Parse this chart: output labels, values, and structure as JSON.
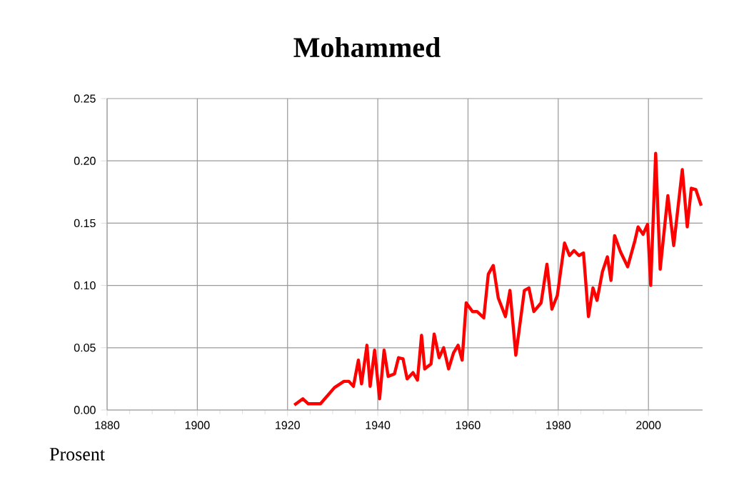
{
  "chart_data": {
    "type": "line",
    "title": "Mohammed",
    "annotations": [
      "Prosent"
    ],
    "x": [
      1921.5,
      1923.4,
      1924.6,
      1927.3,
      1930.4,
      1932.5,
      1933.6,
      1934.6,
      1935.7,
      1936.4,
      1937.6,
      1938.3,
      1939.3,
      1940.4,
      1941.4,
      1942.3,
      1943.7,
      1944.6,
      1945.6,
      1946.5,
      1947.8,
      1948.8,
      1949.7,
      1950.4,
      1951.8,
      1952.5,
      1953.6,
      1954.6,
      1955.7,
      1956.8,
      1957.8,
      1958.7,
      1959.6,
      1961,
      1962,
      1963.5,
      1964.5,
      1965.6,
      1966.7,
      1968.3,
      1969.3,
      1970.6,
      1972.5,
      1973.5,
      1974.6,
      1976.2,
      1977.5,
      1978.6,
      1979.8,
      1981.4,
      1982.5,
      1983.5,
      1984.6,
      1985.6,
      1986.7,
      1987.7,
      1988.6,
      1989.8,
      1990.9,
      1991.7,
      1992.5,
      1993.8,
      1995.4,
      1997,
      1997.7,
      1998.8,
      1999.8,
      2000.5,
      2001.6,
      2002.6,
      2004.3,
      2005.6,
      2007.5,
      2008.6,
      2009.5,
      2010.5,
      2011.7
    ],
    "series": [
      {
        "color": "#ff0000",
        "values": [
          0.004,
          0.009,
          0.005,
          0.005,
          0.018,
          0.023,
          0.023,
          0.019,
          0.04,
          0.021,
          0.052,
          0.019,
          0.048,
          0.009,
          0.048,
          0.027,
          0.029,
          0.042,
          0.041,
          0.025,
          0.03,
          0.024,
          0.06,
          0.033,
          0.037,
          0.061,
          0.042,
          0.05,
          0.033,
          0.046,
          0.052,
          0.04,
          0.086,
          0.079,
          0.079,
          0.074,
          0.109,
          0.116,
          0.09,
          0.075,
          0.096,
          0.044,
          0.096,
          0.098,
          0.079,
          0.086,
          0.117,
          0.081,
          0.092,
          0.134,
          0.124,
          0.128,
          0.124,
          0.126,
          0.075,
          0.098,
          0.088,
          0.111,
          0.123,
          0.104,
          0.14,
          0.127,
          0.115,
          0.136,
          0.147,
          0.141,
          0.149,
          0.1,
          0.206,
          0.113,
          0.172,
          0.132,
          0.193,
          0.147,
          0.178,
          0.177,
          0.164
        ]
      }
    ],
    "xlim": [
      1880,
      2012
    ],
    "xticks": [
      1880,
      1900,
      1920,
      1940,
      1960,
      1980,
      2000
    ],
    "ylim": [
      0,
      0.25
    ],
    "yticks": [
      {
        "value": 0,
        "label": "0.00"
      },
      {
        "value": 0.05,
        "label": "0.05"
      },
      {
        "value": 0.1,
        "label": "0.10"
      },
      {
        "value": 0.15,
        "label": "0.15"
      },
      {
        "value": 0.2,
        "label": "0.20"
      },
      {
        "value": 0.25,
        "label": "0.25"
      }
    ],
    "grid": true,
    "legend": false,
    "marker": "none",
    "line_style": "solid"
  }
}
